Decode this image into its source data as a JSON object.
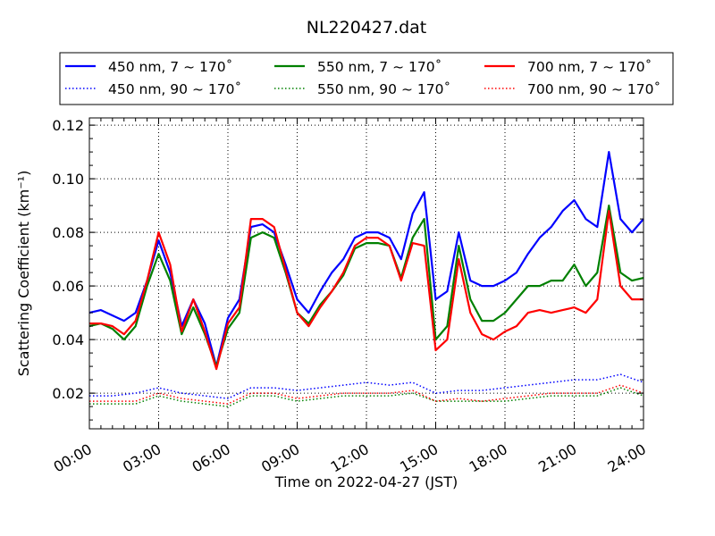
{
  "chart_data": {
    "type": "line",
    "title": "NL220427.dat",
    "xlabel": "Time on 2022-04-27 (JST)",
    "ylabel": "Scattering Coefficient (km⁻¹)",
    "xlim_hours": [
      0,
      24
    ],
    "ylim": [
      0.0067,
      0.1227
    ],
    "grid": true,
    "legend_placement": "top, above plot, 3 columns",
    "x_ticks": [
      {
        "value": 0,
        "label": "00:00"
      },
      {
        "value": 3,
        "label": "03:00"
      },
      {
        "value": 6,
        "label": "06:00"
      },
      {
        "value": 9,
        "label": "09:00"
      },
      {
        "value": 12,
        "label": "12:00"
      },
      {
        "value": 15,
        "label": "15:00"
      },
      {
        "value": 18,
        "label": "18:00"
      },
      {
        "value": 21,
        "label": "21:00"
      },
      {
        "value": 24,
        "label": "24:00"
      }
    ],
    "y_ticks": [
      {
        "value": 0.02,
        "label": "0.02"
      },
      {
        "value": 0.04,
        "label": "0.04"
      },
      {
        "value": 0.06,
        "label": "0.06"
      },
      {
        "value": 0.08,
        "label": "0.08"
      },
      {
        "value": 0.1,
        "label": "0.10"
      },
      {
        "value": 0.12,
        "label": "0.12"
      }
    ],
    "series": [
      {
        "name": "450 nm, 7 ~ 170˚",
        "color": "#0000ff",
        "style": "solid",
        "step_hours": 0.5,
        "values": [
          0.05,
          0.051,
          0.049,
          0.047,
          0.05,
          0.062,
          0.077,
          0.065,
          0.045,
          0.055,
          0.046,
          0.03,
          0.048,
          0.055,
          0.082,
          0.083,
          0.08,
          0.068,
          0.055,
          0.05,
          0.058,
          0.065,
          0.07,
          0.078,
          0.08,
          0.08,
          0.078,
          0.07,
          0.087,
          0.095,
          0.055,
          0.058,
          0.08,
          0.062,
          0.06,
          0.06,
          0.062,
          0.065,
          0.072,
          0.078,
          0.082,
          0.088,
          0.092,
          0.085,
          0.082,
          0.11,
          0.085,
          0.08,
          0.085
        ]
      },
      {
        "name": "550 nm, 7 ~ 170˚",
        "color": "#008000",
        "style": "solid",
        "step_hours": 0.5,
        "values": [
          0.045,
          0.046,
          0.044,
          0.04,
          0.045,
          0.06,
          0.072,
          0.062,
          0.042,
          0.052,
          0.042,
          0.03,
          0.044,
          0.05,
          0.078,
          0.08,
          0.078,
          0.065,
          0.05,
          0.046,
          0.053,
          0.058,
          0.064,
          0.074,
          0.076,
          0.076,
          0.075,
          0.063,
          0.078,
          0.085,
          0.04,
          0.045,
          0.075,
          0.055,
          0.047,
          0.047,
          0.05,
          0.055,
          0.06,
          0.06,
          0.062,
          0.062,
          0.068,
          0.06,
          0.065,
          0.09,
          0.065,
          0.062,
          0.063
        ]
      },
      {
        "name": "700 nm, 7 ~ 170˚",
        "color": "#ff0000",
        "style": "solid",
        "step_hours": 0.5,
        "values": [
          0.046,
          0.046,
          0.045,
          0.042,
          0.047,
          0.062,
          0.08,
          0.068,
          0.043,
          0.055,
          0.043,
          0.029,
          0.046,
          0.052,
          0.085,
          0.085,
          0.082,
          0.066,
          0.05,
          0.045,
          0.052,
          0.058,
          0.065,
          0.075,
          0.078,
          0.078,
          0.075,
          0.062,
          0.076,
          0.075,
          0.036,
          0.04,
          0.07,
          0.05,
          0.042,
          0.04,
          0.043,
          0.045,
          0.05,
          0.051,
          0.05,
          0.051,
          0.052,
          0.05,
          0.055,
          0.088,
          0.06,
          0.055,
          0.055
        ]
      },
      {
        "name": "450 nm, 90 ~ 170˚",
        "color": "#0000ff",
        "style": "dotted",
        "step_hours": 1,
        "values": [
          0.019,
          0.019,
          0.02,
          0.022,
          0.02,
          0.019,
          0.018,
          0.022,
          0.022,
          0.021,
          0.022,
          0.023,
          0.024,
          0.023,
          0.024,
          0.02,
          0.021,
          0.021,
          0.022,
          0.023,
          0.024,
          0.025,
          0.025,
          0.027,
          0.024
        ]
      },
      {
        "name": "550 nm, 90 ~ 170˚",
        "color": "#008000",
        "style": "dotted",
        "step_hours": 1,
        "values": [
          0.016,
          0.016,
          0.016,
          0.019,
          0.017,
          0.016,
          0.015,
          0.019,
          0.019,
          0.017,
          0.018,
          0.019,
          0.019,
          0.019,
          0.02,
          0.017,
          0.017,
          0.017,
          0.017,
          0.018,
          0.019,
          0.019,
          0.019,
          0.022,
          0.019
        ]
      },
      {
        "name": "700 nm, 90 ~ 170˚",
        "color": "#ff0000",
        "style": "dotted",
        "step_hours": 1,
        "values": [
          0.017,
          0.017,
          0.017,
          0.02,
          0.018,
          0.017,
          0.016,
          0.02,
          0.02,
          0.018,
          0.019,
          0.02,
          0.02,
          0.02,
          0.021,
          0.017,
          0.018,
          0.017,
          0.018,
          0.019,
          0.02,
          0.02,
          0.02,
          0.023,
          0.02
        ]
      }
    ]
  }
}
